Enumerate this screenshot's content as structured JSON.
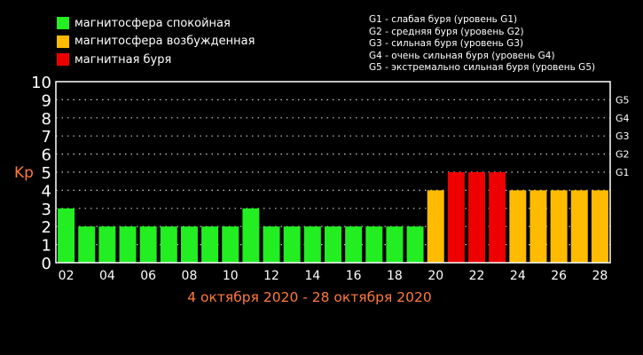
{
  "legend": {
    "items": [
      {
        "label": "магнитосфера спокойная",
        "color": "#22ee22"
      },
      {
        "label": "магнитосфера возбужденная",
        "color": "#ffbb00"
      },
      {
        "label": "магнитная буря",
        "color": "#ee0000"
      }
    ]
  },
  "storm_levels": {
    "items": [
      "G1 - слабая буря (уровень G1)",
      "G2 - средняя буря (уровень G2)",
      "G3 - сильная буря (уровень G3)",
      "G4 - очень сильная буря (уровень G4)",
      "G5 - экстремально сильная буря (уровень G5)"
    ]
  },
  "chart_data": {
    "type": "bar",
    "xlabel": "4 октября 2020 - 28 октября 2020",
    "ylabel": "Kp",
    "ylim": [
      0,
      10
    ],
    "grid": true,
    "yticks": [
      "0",
      "1",
      "2",
      "3",
      "4",
      "5",
      "6",
      "7",
      "8",
      "9",
      "10"
    ],
    "xticks": [
      "02",
      "04",
      "06",
      "08",
      "10",
      "12",
      "14",
      "16",
      "18",
      "20",
      "22",
      "24",
      "26",
      "28"
    ],
    "right_ticks": [
      {
        "label": "G1",
        "y": 5
      },
      {
        "label": "G2",
        "y": 6
      },
      {
        "label": "G3",
        "y": 7
      },
      {
        "label": "G4",
        "y": 8
      },
      {
        "label": "G5",
        "y": 9
      }
    ],
    "values": [
      3,
      2,
      2,
      2,
      2,
      2,
      2,
      2,
      2,
      3,
      2,
      2,
      2,
      2,
      2,
      2,
      2,
      2,
      4,
      5,
      5,
      5,
      4,
      4,
      4,
      4,
      4
    ],
    "colors": {
      "calm": "#22ee22",
      "disturbed": "#ffbb00",
      "storm": "#ee0000"
    },
    "bar_status": [
      "calm",
      "calm",
      "calm",
      "calm",
      "calm",
      "calm",
      "calm",
      "calm",
      "calm",
      "calm",
      "calm",
      "calm",
      "calm",
      "calm",
      "calm",
      "calm",
      "calm",
      "calm",
      "disturbed",
      "storm",
      "storm",
      "storm",
      "disturbed",
      "disturbed",
      "disturbed",
      "disturbed",
      "disturbed"
    ]
  }
}
